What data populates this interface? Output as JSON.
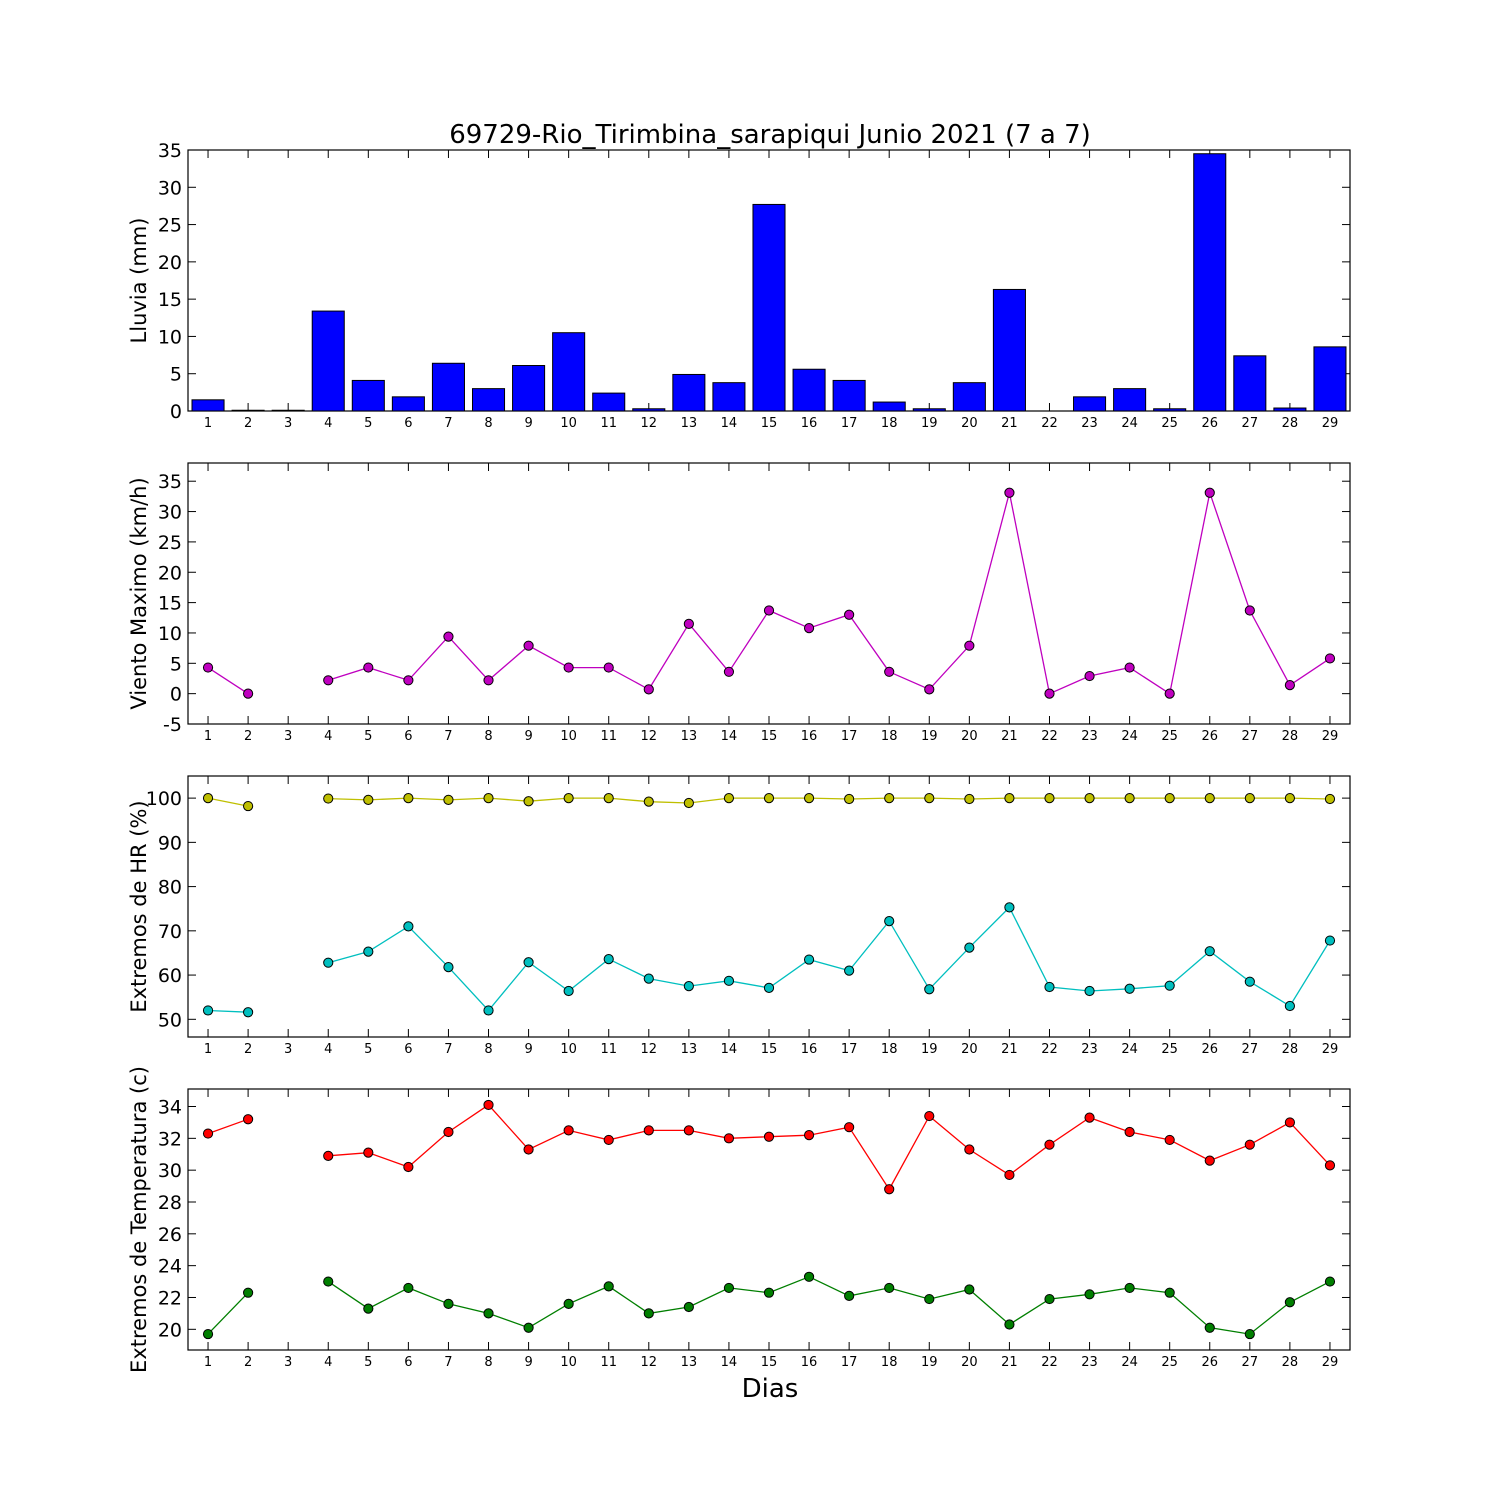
{
  "chart_data": {
    "title": "69729-Rio_Tirimbina_sarapiqui Junio 2021  (7 a 7)",
    "xlabel": "Dias",
    "x": [
      1,
      2,
      3,
      4,
      5,
      6,
      7,
      8,
      9,
      10,
      11,
      12,
      13,
      14,
      15,
      16,
      17,
      18,
      19,
      20,
      21,
      22,
      23,
      24,
      25,
      26,
      27,
      28,
      29
    ],
    "panels": [
      {
        "type": "bar",
        "ylabel": "Lluvia (mm)",
        "ylim": [
          0,
          35
        ],
        "yticks": [
          0,
          5,
          10,
          15,
          20,
          25,
          30,
          35
        ],
        "grid": false,
        "series": [
          {
            "color": "#0000ff",
            "values": [
              1.5,
              0.1,
              0.1,
              13.4,
              4.1,
              1.9,
              6.4,
              3.0,
              6.1,
              10.5,
              2.4,
              0.3,
              4.9,
              3.8,
              27.7,
              5.6,
              4.1,
              1.2,
              0.3,
              3.8,
              16.3,
              0.0,
              1.9,
              3.0,
              0.3,
              34.5,
              7.4,
              0.4,
              8.6
            ]
          }
        ]
      },
      {
        "type": "line",
        "ylabel": "Viento Maximo (km/h)",
        "ylim": [
          -5,
          38
        ],
        "yticks": [
          -5,
          0,
          5,
          10,
          15,
          20,
          25,
          30,
          35
        ],
        "grid": false,
        "series": [
          {
            "color": "#bf00bf",
            "values": [
              4.3,
              0.0,
              null,
              2.2,
              4.3,
              2.2,
              9.4,
              2.2,
              7.9,
              4.3,
              4.3,
              0.7,
              11.5,
              3.6,
              13.7,
              10.8,
              13.0,
              3.6,
              0.7,
              7.9,
              33.1,
              0.0,
              2.9,
              4.3,
              0.0,
              33.1,
              13.7,
              1.4,
              5.8
            ]
          }
        ]
      },
      {
        "type": "line",
        "ylabel": "Extremos de HR (%)",
        "ylim": [
          46,
          105
        ],
        "yticks": [
          50,
          60,
          70,
          80,
          90,
          100
        ],
        "grid": false,
        "series": [
          {
            "color": "#bfbf00",
            "values": [
              100,
              98.2,
              null,
              99.9,
              99.6,
              100,
              99.6,
              100,
              99.3,
              100,
              100,
              99.2,
              98.9,
              100,
              100,
              100,
              99.8,
              100,
              100,
              99.8,
              100,
              100,
              100,
              100,
              100,
              100,
              100,
              100,
              99.8
            ]
          },
          {
            "color": "#00bfbf",
            "values": [
              52.0,
              51.6,
              null,
              62.8,
              65.3,
              71.0,
              61.8,
              52.0,
              62.9,
              56.4,
              63.6,
              59.2,
              57.5,
              58.7,
              57.1,
              63.5,
              61.0,
              72.2,
              56.8,
              66.2,
              75.3,
              57.3,
              56.4,
              56.9,
              57.6,
              65.4,
              58.5,
              53.0,
              67.8
            ]
          }
        ]
      },
      {
        "type": "line",
        "ylabel": "Extremos de Temperatura (c)",
        "ylim": [
          18.7,
          35.1
        ],
        "yticks": [
          20,
          22,
          24,
          26,
          28,
          30,
          32,
          34
        ],
        "grid": false,
        "series": [
          {
            "color": "#ff0000",
            "values": [
              32.3,
              33.2,
              null,
              30.9,
              31.1,
              30.2,
              32.4,
              34.1,
              31.3,
              32.5,
              31.9,
              32.5,
              32.5,
              32.0,
              32.1,
              32.2,
              32.7,
              28.8,
              33.4,
              31.3,
              29.7,
              31.6,
              33.3,
              32.4,
              31.9,
              30.6,
              31.6,
              33.0,
              30.3
            ]
          },
          {
            "color": "#007f00",
            "values": [
              19.7,
              22.3,
              null,
              23.0,
              21.3,
              22.6,
              21.6,
              21.0,
              20.1,
              21.6,
              22.7,
              21.0,
              21.4,
              22.6,
              22.3,
              23.3,
              22.1,
              22.6,
              21.9,
              22.5,
              20.3,
              21.9,
              22.2,
              22.6,
              22.3,
              20.1,
              19.7,
              21.7,
              23.0
            ]
          }
        ]
      }
    ]
  }
}
